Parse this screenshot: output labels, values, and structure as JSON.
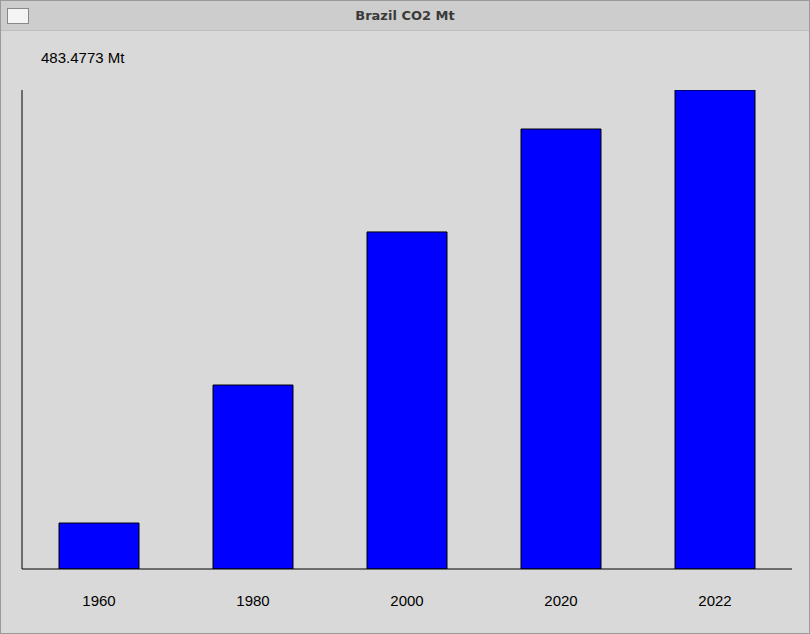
{
  "chart_data": {
    "type": "bar",
    "title": "Brazil CO2 Mt",
    "annotation": "483.4773 Mt",
    "categories": [
      "1960",
      "1980",
      "2000",
      "2020",
      "2022"
    ],
    "values": [
      46.4,
      185.7,
      340.2,
      444.1,
      483.4773
    ],
    "color": "#0000ff",
    "ylim": [
      0,
      483.4773
    ],
    "tick_labels": "x"
  }
}
